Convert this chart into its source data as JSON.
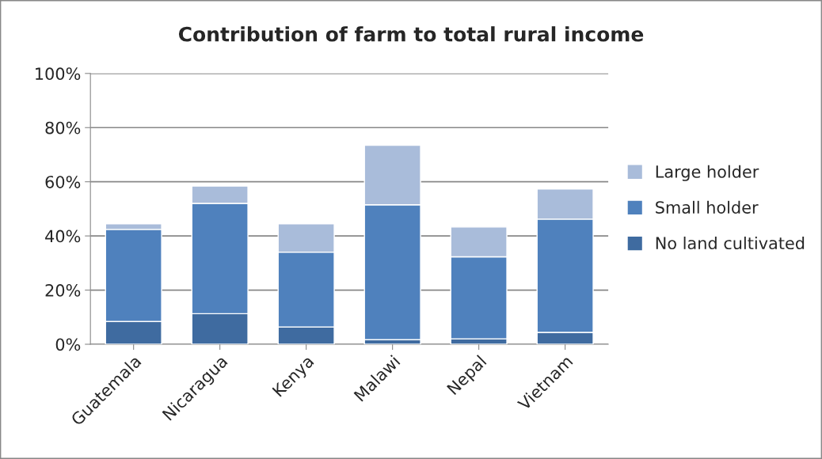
{
  "chart_data": {
    "type": "bar",
    "title": "Contribution of farm to total rural income",
    "stacked": true,
    "categories": [
      "Guatemala",
      "Nicaragua",
      "Kenya",
      "Malawi",
      "Nepal",
      "Vietnam"
    ],
    "series": [
      {
        "name": "No land cultivated",
        "color": "#3f6ba0",
        "values": [
          8.4,
          11.3,
          6.4,
          1.7,
          2.0,
          4.4
        ]
      },
      {
        "name": "Small holder",
        "color": "#4f81bd",
        "values": [
          34.0,
          40.7,
          27.6,
          49.8,
          30.3,
          41.8
        ]
      },
      {
        "name": "Large holder",
        "color": "#a9bcda",
        "values": [
          2.1,
          6.4,
          10.5,
          22.0,
          11.0,
          11.1
        ]
      }
    ],
    "ylim": [
      0,
      100
    ],
    "yticks": [
      {
        "value": 0,
        "label": "0%"
      },
      {
        "value": 20,
        "label": "20%"
      },
      {
        "value": 40,
        "label": "40%"
      },
      {
        "value": 60,
        "label": "60%"
      },
      {
        "value": 80,
        "label": "80%"
      },
      {
        "value": 100,
        "label": "100%"
      }
    ],
    "grid": "y",
    "legend": "right"
  }
}
